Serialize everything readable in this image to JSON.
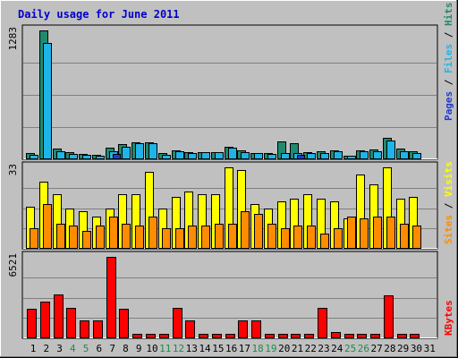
{
  "chart_data": {
    "type": "bar",
    "title": "Daily usage for June 2011",
    "categories": [
      "1",
      "2",
      "3",
      "4",
      "5",
      "6",
      "7",
      "8",
      "9",
      "10",
      "11",
      "12",
      "13",
      "14",
      "15",
      "16",
      "17",
      "18",
      "19",
      "20",
      "21",
      "22",
      "23",
      "24",
      "25",
      "26",
      "27",
      "28",
      "29",
      "30",
      "31"
    ],
    "weekend_categories": [
      "4",
      "5",
      "11",
      "12",
      "18",
      "19",
      "25",
      "26"
    ],
    "panels": [
      {
        "id": "hits-files-pages",
        "max_label": "1283",
        "ylim": [
          0,
          1283
        ],
        "legend": [
          "Pages",
          "Files",
          "Hits"
        ],
        "series": [
          {
            "name": "Hits",
            "color": "#1f8a70",
            "values": [
              55,
              1283,
              100,
              60,
              45,
              40,
              105,
              140,
              165,
              160,
              50,
              80,
              60,
              65,
              65,
              120,
              85,
              55,
              55,
              170,
              150,
              60,
              75,
              80,
              30,
              80,
              90,
              205,
              100,
              70,
              0
            ]
          },
          {
            "name": "Files",
            "color": "#1fb4e8",
            "values": [
              35,
              1160,
              70,
              45,
              35,
              30,
              70,
              115,
              155,
              150,
              40,
              70,
              55,
              60,
              60,
              105,
              65,
              50,
              45,
              55,
              55,
              50,
              55,
              70,
              25,
              70,
              70,
              180,
              70,
              50,
              0
            ]
          },
          {
            "name": "Pages",
            "color": "#1f3ccf",
            "values": [
              0,
              0,
              0,
              0,
              0,
              0,
              45,
              0,
              0,
              0,
              0,
              0,
              0,
              0,
              0,
              0,
              0,
              0,
              0,
              0,
              40,
              0,
              0,
              0,
              0,
              0,
              0,
              0,
              0,
              0,
              0
            ]
          }
        ]
      },
      {
        "id": "visits-sites",
        "max_label": "33",
        "ylim": [
          0,
          33
        ],
        "legend": [
          "Sites",
          "Visits"
        ],
        "series": [
          {
            "name": "Visits",
            "color": "#ffff00",
            "values": [
              17,
              27,
              22,
              16,
              15,
              13,
              16,
              22,
              22,
              31,
              16,
              21,
              23,
              22,
              22,
              33,
              32,
              18,
              16,
              19,
              20,
              22,
              20,
              19,
              12,
              30,
              26,
              33,
              20,
              21,
              0
            ]
          },
          {
            "name": "Sites",
            "color": "#ff8c00",
            "values": [
              8,
              18,
              10,
              9,
              7,
              9,
              13,
              10,
              9,
              13,
              8,
              8,
              9,
              9,
              10,
              10,
              15,
              14,
              10,
              8,
              9,
              9,
              6,
              8,
              13,
              12,
              13,
              13,
              10,
              9,
              0
            ]
          }
        ]
      },
      {
        "id": "kbytes",
        "max_label": "6521",
        "ylim": [
          0,
          6521
        ],
        "legend": [
          "KBytes"
        ],
        "series": [
          {
            "name": "KBytes",
            "color": "#ff0000",
            "values": [
              2350,
              2920,
              3450,
              2400,
              1350,
              1380,
              6521,
              2350,
              290,
              290,
              290,
              2400,
              1350,
              290,
              290,
              290,
              1400,
              1350,
              290,
              290,
              290,
              290,
              2400,
              400,
              290,
              290,
              290,
              3400,
              290,
              290,
              0
            ]
          }
        ]
      }
    ]
  }
}
